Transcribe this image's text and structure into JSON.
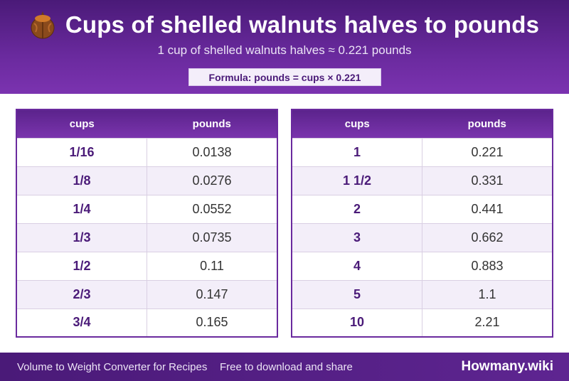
{
  "header": {
    "icon": "walnut-icon",
    "title": "Cups of shelled walnuts halves to pounds",
    "subtitle": "1 cup of shelled walnuts halves ≈ 0.221 pounds",
    "formula": "Formula: pounds = cups × 0.221"
  },
  "tables": [
    {
      "headers": [
        "cups",
        "pounds"
      ],
      "rows": [
        [
          "1/16",
          "0.0138"
        ],
        [
          "1/8",
          "0.0276"
        ],
        [
          "1/4",
          "0.0552"
        ],
        [
          "1/3",
          "0.0735"
        ],
        [
          "1/2",
          "0.11"
        ],
        [
          "2/3",
          "0.147"
        ],
        [
          "3/4",
          "0.165"
        ]
      ]
    },
    {
      "headers": [
        "cups",
        "pounds"
      ],
      "rows": [
        [
          "1",
          "0.221"
        ],
        [
          "1 1/2",
          "0.331"
        ],
        [
          "2",
          "0.441"
        ],
        [
          "3",
          "0.662"
        ],
        [
          "4",
          "0.883"
        ],
        [
          "5",
          "1.1"
        ],
        [
          "10",
          "2.21"
        ]
      ]
    }
  ],
  "footer": {
    "left": "Volume to Weight Converter for Recipes",
    "middle": "Free to download and share",
    "brand": "Howmany.wiki"
  },
  "colors": {
    "header_purple": "#5b238c",
    "accent_purple": "#4a1a78",
    "row_alt": "#f3eef9"
  }
}
